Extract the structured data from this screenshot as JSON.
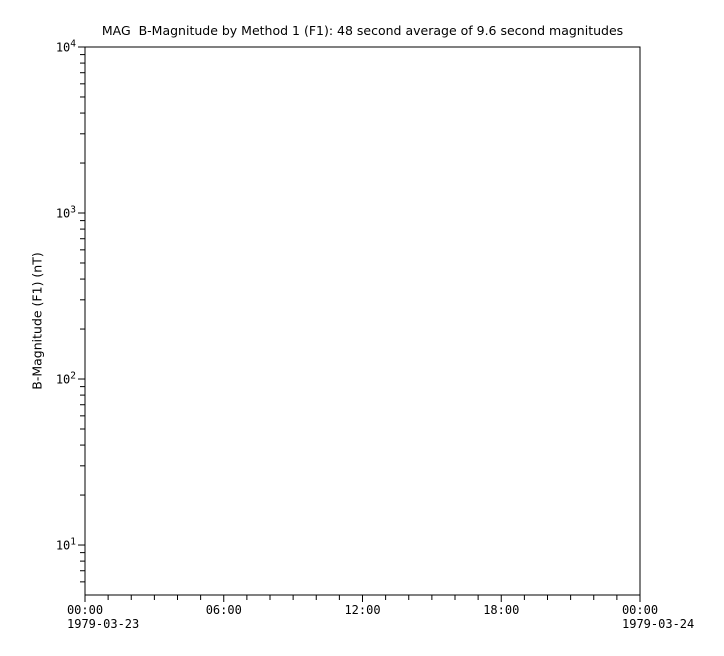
{
  "chart_data": {
    "type": "line",
    "title": "MAG  B-Magnitude by Method 1 (F1): 48 second average of 9.6 second magnitudes",
    "ylabel": "B-Magnitude (F1) (nT)",
    "xlabel": "",
    "y_scale": "log",
    "ylim": [
      5,
      10000
    ],
    "y_major_exponents": [
      4,
      3,
      2,
      1
    ],
    "y_minor_decade_exponents": [
      3,
      2,
      1,
      0
    ],
    "y_tick_mantissa": "10",
    "x_major_tick_labels": [
      "00:00",
      "06:00",
      "12:00",
      "18:00",
      "00:00"
    ],
    "x_minor_ticks_per_interval": 5,
    "x_start_date": "1979-03-23",
    "x_end_date": "1979-03-24",
    "series": [],
    "grid": false,
    "legend": false,
    "axis_color": "#000000",
    "background_color": "#ffffff"
  }
}
